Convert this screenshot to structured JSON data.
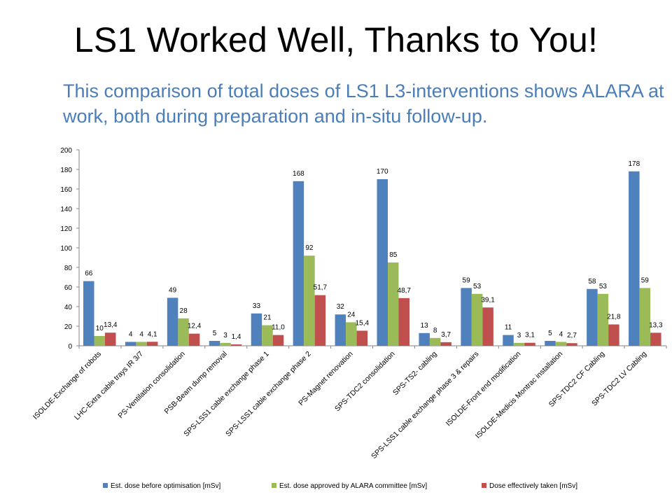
{
  "slide": {
    "title": "LS1 Worked Well, Thanks to You!",
    "subtitle": "This comparison of total doses of LS1 L3-interventions shows ALARA at work, both during preparation and in-situ follow-up."
  },
  "chart_data": {
    "type": "bar",
    "categories": [
      "ISOLDE-Exchange of robots",
      "LHC-Extra cable trays IR 3/7",
      "PS-Ventilation consolidation",
      "PSB-Beam dump removal",
      "SPS-LSS1 cable exchange phase 1",
      "SPS-LSS1 cable exchange phase 2",
      "PS-Magnet renovation",
      "SPS-TDC2 consolidation",
      "SPS-TS2- cabling",
      "SPS-LSS1 cable exchange phase 3 & repairs",
      "ISOLDE-Front end modification",
      "ISOLDE-Medicis Montrac installation",
      "SPS-TDC2 CF Cabling",
      "SPS-TDC2 LV Cabling"
    ],
    "series": [
      {
        "name": "Est. dose before optimisation [mSv]",
        "color": "#4f81bd",
        "values": [
          66,
          4,
          49,
          5,
          33,
          168,
          32,
          170,
          13,
          59,
          11,
          5,
          58,
          178
        ],
        "labels": [
          "66",
          "4",
          "49",
          "5",
          "33",
          "168",
          "32",
          "170",
          "13",
          "59",
          "11",
          "5",
          "58",
          "178"
        ]
      },
      {
        "name": "Est. dose approved by ALARA committee [mSv]",
        "color": "#9bbb59",
        "values": [
          10,
          4,
          28,
          3,
          21,
          92,
          24,
          85,
          8,
          53,
          3,
          4,
          53,
          59
        ],
        "labels": [
          "10",
          "4",
          "28",
          "3",
          "21",
          "92",
          "24",
          "85",
          "8",
          "53",
          "3",
          "4",
          "53",
          "59"
        ]
      },
      {
        "name": "Dose effectively taken [mSv]",
        "color": "#c0504d",
        "values": [
          13.4,
          4.1,
          12.4,
          1.4,
          11.0,
          51.7,
          15.4,
          48.7,
          3.7,
          39.1,
          3.1,
          2.7,
          21.8,
          13.3
        ],
        "labels": [
          "13,4",
          "4,1",
          "12,4",
          "1,4",
          "11,0",
          "51,7",
          "15,4",
          "48,7",
          "3,7",
          "39,1",
          "3,1",
          "2,7",
          "21,8",
          "13,3"
        ]
      }
    ],
    "ylim": [
      0,
      200
    ],
    "yticks": [
      "0",
      "20",
      "40",
      "60",
      "80",
      "100",
      "120",
      "140",
      "160",
      "180",
      "200"
    ],
    "grid": false,
    "legend_position": "bottom"
  }
}
